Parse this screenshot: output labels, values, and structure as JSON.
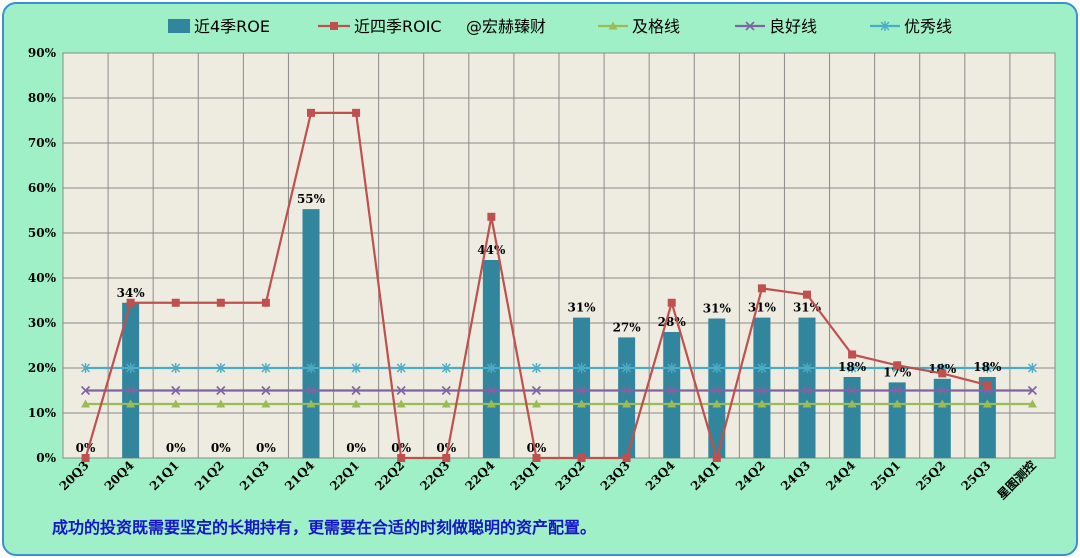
{
  "chart_data": {
    "type": "bar",
    "categories": [
      "20Q3",
      "20Q4",
      "21Q1",
      "21Q2",
      "21Q3",
      "21Q4",
      "22Q1",
      "22Q2",
      "22Q3",
      "22Q4",
      "23Q1",
      "23Q2",
      "23Q3",
      "23Q4",
      "24Q1",
      "24Q2",
      "24Q3",
      "24Q4",
      "25Q1",
      "25Q2",
      "25Q3",
      "星图测控"
    ],
    "ylim": [
      0,
      90
    ],
    "yticks": [
      "0%",
      "10%",
      "20%",
      "30%",
      "40%",
      "50%",
      "60%",
      "70%",
      "80%",
      "90%"
    ],
    "grid": true,
    "legend_position": "top",
    "series": [
      {
        "name": "近4季ROE",
        "kind": "bar",
        "color": "#31859c",
        "values": [
          0,
          34.5,
          0,
          0,
          0,
          55.3,
          0,
          0,
          0,
          44,
          0,
          31.2,
          26.8,
          28,
          31,
          31.2,
          31.2,
          18,
          16.8,
          17.6,
          18,
          null
        ],
        "labels": [
          "0%",
          "34%",
          "0%",
          "0%",
          "0%",
          "55%",
          "0%",
          "0%",
          "0%",
          "44%",
          "0%",
          "31%",
          "27%",
          "28%",
          "31%",
          "31%",
          "31%",
          "18%",
          "17%",
          "18%",
          "18%",
          ""
        ]
      },
      {
        "name": "近四季ROIC",
        "kind": "line",
        "color": "#c0504d",
        "values": [
          0,
          34.5,
          34.5,
          34.5,
          34.5,
          76.7,
          76.7,
          0,
          0,
          53.6,
          0,
          0,
          0,
          34.5,
          0,
          37.7,
          36.3,
          23,
          20.6,
          18.8,
          16.2,
          null
        ]
      },
      {
        "name": "及格线",
        "kind": "line",
        "color": "#9bbb59",
        "marker": "triangle",
        "values": [
          12,
          12,
          12,
          12,
          12,
          12,
          12,
          12,
          12,
          12,
          12,
          12,
          12,
          12,
          12,
          12,
          12,
          12,
          12,
          12,
          12,
          12
        ]
      },
      {
        "name": "良好线",
        "kind": "line",
        "color": "#8064a2",
        "marker": "x",
        "values": [
          15,
          15,
          15,
          15,
          15,
          15,
          15,
          15,
          15,
          15,
          15,
          15,
          15,
          15,
          15,
          15,
          15,
          15,
          15,
          15,
          15,
          15
        ]
      },
      {
        "name": "优秀线",
        "kind": "line",
        "color": "#4bacc6",
        "marker": "star",
        "values": [
          20,
          20,
          20,
          20,
          20,
          20,
          20,
          20,
          20,
          20,
          20,
          20,
          20,
          20,
          20,
          20,
          20,
          20,
          20,
          20,
          20,
          20
        ]
      }
    ],
    "legend_extra_text": "@宏赫臻财"
  },
  "footer_text": "成功的投资既需要坚定的长期持有，更需要在合适的时刻做聪明的资产配置。"
}
